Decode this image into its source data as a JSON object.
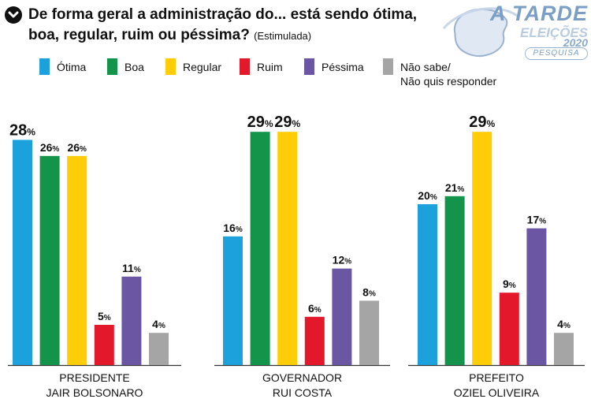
{
  "header": {
    "question_line1": "De forma geral a administração do... está sendo ótima,",
    "question_line2": "boa, regular, ruim ou péssima?",
    "qualifier": "(Estimulada)"
  },
  "logo": {
    "brand": "A TARDE",
    "event": "ELEIÇÕES",
    "year": "2020",
    "tag": "PESQUISA"
  },
  "legend": [
    {
      "label": "Ótima",
      "color": "#1da1dc"
    },
    {
      "label": "Boa",
      "color": "#13944a"
    },
    {
      "label": "Regular",
      "color": "#ffcc08"
    },
    {
      "label": "Ruim",
      "color": "#e4182b"
    },
    {
      "label": "Péssima",
      "color": "#6a56a2"
    },
    {
      "label": "Não sabe/\nNão quis responder",
      "color": "#a5a5a5"
    }
  ],
  "chart_data": {
    "type": "bar",
    "title": "De forma geral a administração do... está sendo ótima, boa, regular, ruim ou péssima? (Estimulada)",
    "xlabel": "",
    "ylabel": "",
    "unit": "%",
    "ylim": [
      0,
      30
    ],
    "categories": [
      "PRESIDENTE\nJAIR BOLSONARO",
      "GOVERNADOR\nRUI COSTA",
      "PREFEITO\nOZIEL OLIVEIRA"
    ],
    "series": [
      {
        "name": "Ótima",
        "color": "#1da1dc",
        "values": [
          28,
          16,
          20
        ]
      },
      {
        "name": "Boa",
        "color": "#13944a",
        "values": [
          26,
          29,
          21
        ]
      },
      {
        "name": "Regular",
        "color": "#ffcc08",
        "values": [
          26,
          29,
          29
        ]
      },
      {
        "name": "Ruim",
        "color": "#e4182b",
        "values": [
          5,
          6,
          9
        ]
      },
      {
        "name": "Péssima",
        "color": "#6a56a2",
        "values": [
          11,
          12,
          17
        ]
      },
      {
        "name": "Não sabe/Não quis responder",
        "color": "#a5a5a5",
        "values": [
          4,
          8,
          4
        ]
      }
    ],
    "highlight_max": true
  }
}
